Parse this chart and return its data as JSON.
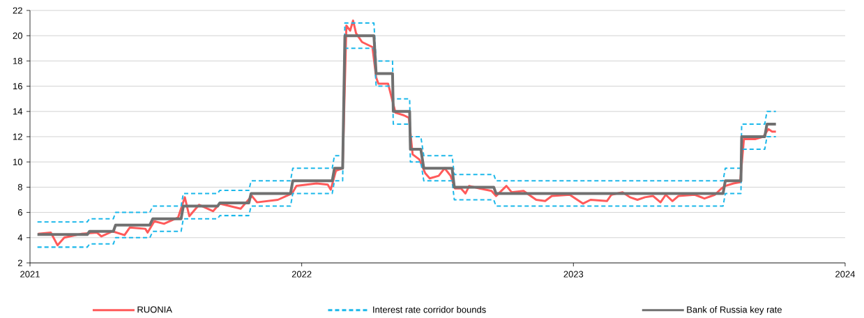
{
  "chart_data": {
    "type": "line",
    "x": [
      "2021-01-11",
      "2021-03-19",
      "2021-03-22",
      "2021-04-23",
      "2021-04-26",
      "2021-06-11",
      "2021-06-15",
      "2021-07-23",
      "2021-07-26",
      "2021-09-10",
      "2021-09-13",
      "2021-10-22",
      "2021-10-25",
      "2021-12-17",
      "2021-12-20",
      "2022-02-11",
      "2022-02-14",
      "2022-02-25",
      "2022-02-28",
      "2022-04-08",
      "2022-04-11",
      "2022-05-03",
      "2022-05-04",
      "2022-05-26",
      "2022-05-27",
      "2022-06-10",
      "2022-06-14",
      "2022-07-22",
      "2022-07-25",
      "2022-09-16",
      "2022-09-19",
      "2023-07-21",
      "2023-07-24",
      "2023-08-14",
      "2023-08-15",
      "2023-09-15",
      "2023-09-18",
      "2023-09-30"
    ],
    "series": [
      {
        "name": "RUONIA",
        "color": "#ff5a5a",
        "line_style": "solid",
        "x": [
          "2021-01-12",
          "2021-01-29",
          "2021-02-07",
          "2021-02-16",
          "2021-03-11",
          "2021-04-01",
          "2021-04-07",
          "2021-04-22",
          "2021-05-08",
          "2021-05-15",
          "2021-06-05",
          "2021-06-08",
          "2021-06-17",
          "2021-06-30",
          "2021-07-19",
          "2021-07-28",
          "2021-08-03",
          "2021-08-16",
          "2021-09-04",
          "2021-09-13",
          "2021-10-11",
          "2021-10-26",
          "2021-11-02",
          "2021-11-30",
          "2021-12-19",
          "2021-12-25",
          "2022-01-21",
          "2022-02-05",
          "2022-02-09",
          "2022-02-16",
          "2022-02-25",
          "2022-03-02",
          "2022-03-07",
          "2022-03-11",
          "2022-03-15",
          "2022-03-23",
          "2022-04-06",
          "2022-04-11",
          "2022-04-14",
          "2022-04-27",
          "2022-05-07",
          "2022-05-18",
          "2022-05-25",
          "2022-05-30",
          "2022-06-08",
          "2022-06-16",
          "2022-06-22",
          "2022-07-04",
          "2022-07-12",
          "2022-07-20",
          "2022-07-26",
          "2022-08-03",
          "2022-08-09",
          "2022-08-14",
          "2022-08-28",
          "2022-09-13",
          "2022-09-19",
          "2022-10-03",
          "2022-10-10",
          "2022-10-26",
          "2022-11-12",
          "2022-11-24",
          "2022-12-03",
          "2022-12-27",
          "2023-01-14",
          "2023-01-24",
          "2023-02-15",
          "2023-02-21",
          "2023-03-08",
          "2023-03-18",
          "2023-03-28",
          "2023-04-07",
          "2023-04-18",
          "2023-04-28",
          "2023-05-05",
          "2023-05-14",
          "2023-05-22",
          "2023-06-13",
          "2023-06-26",
          "2023-07-10",
          "2023-07-19",
          "2023-07-24",
          "2023-08-04",
          "2023-08-13",
          "2023-08-18",
          "2023-09-02",
          "2023-09-13",
          "2023-09-20",
          "2023-09-25",
          "2023-09-30"
        ],
        "values": [
          4.3,
          4.4,
          3.4,
          4.0,
          4.3,
          4.4,
          4.1,
          4.5,
          4.2,
          4.8,
          4.7,
          4.4,
          5.3,
          5.1,
          5.6,
          7.2,
          5.7,
          6.6,
          6.1,
          6.7,
          6.3,
          7.3,
          6.8,
          7.0,
          7.5,
          8.1,
          8.3,
          8.2,
          7.8,
          9.3,
          9.5,
          20.8,
          20.4,
          21.2,
          20.2,
          19.5,
          19.1,
          16.7,
          16.2,
          16.2,
          13.9,
          13.7,
          13.5,
          10.6,
          10.2,
          9.1,
          8.7,
          8.9,
          9.5,
          8.9,
          7.9,
          7.9,
          7.5,
          8.1,
          7.9,
          7.7,
          7.3,
          8.1,
          7.6,
          7.7,
          7.0,
          6.9,
          7.3,
          7.4,
          6.7,
          7.0,
          6.9,
          7.4,
          7.6,
          7.2,
          7.0,
          7.2,
          7.3,
          6.8,
          7.4,
          6.9,
          7.3,
          7.4,
          7.1,
          7.4,
          7.9,
          8.1,
          8.3,
          8.4,
          11.8,
          11.8,
          12.0,
          12.6,
          12.4,
          12.4
        ]
      },
      {
        "name": "Interest rate corridor bounds",
        "color": "#1cb8ea",
        "line_style": "dashed",
        "values": [
          5.25,
          5.25,
          5.5,
          5.5,
          6,
          6,
          6.5,
          6.5,
          7.5,
          7.5,
          7.75,
          7.75,
          8.5,
          8.5,
          9.5,
          9.5,
          10.5,
          10.5,
          21,
          21,
          18,
          18,
          15,
          15,
          12,
          12,
          10.5,
          10.5,
          9,
          9,
          8.5,
          8.5,
          9.5,
          9.5,
          13,
          13,
          14,
          14
        ]
      },
      {
        "color": "#1cb8ea",
        "line_style": "dashed",
        "values": [
          3.25,
          3.25,
          3.5,
          3.5,
          4,
          4,
          4.5,
          4.5,
          5.5,
          5.5,
          5.75,
          5.75,
          6.5,
          6.5,
          7.5,
          7.5,
          8.5,
          8.5,
          19,
          19,
          16,
          16,
          13,
          13,
          10,
          10,
          8.5,
          8.5,
          7,
          7,
          6.5,
          6.5,
          7.5,
          7.5,
          11,
          11,
          12,
          12
        ]
      },
      {
        "name": "Bank of Russia key rate",
        "color": "#707070",
        "line_style": "solid",
        "values": [
          4.25,
          4.25,
          4.5,
          4.5,
          5,
          5,
          5.5,
          5.5,
          6.5,
          6.5,
          6.75,
          6.75,
          7.5,
          7.5,
          8.5,
          8.5,
          9.5,
          9.5,
          20,
          20,
          17,
          17,
          14,
          14,
          11,
          11,
          9.5,
          9.5,
          8,
          8,
          7.5,
          7.5,
          8.5,
          8.5,
          12,
          12,
          13,
          13
        ]
      }
    ],
    "xlim": [
      "2021-01-01",
      "2024-01-01"
    ],
    "xticks": [
      "2021",
      "2022",
      "2023",
      "2024"
    ],
    "ylim": [
      2,
      22
    ],
    "yticks": [
      2,
      4,
      6,
      8,
      10,
      12,
      14,
      16,
      18,
      20,
      22
    ],
    "grid": "y",
    "legend": "bottom"
  }
}
